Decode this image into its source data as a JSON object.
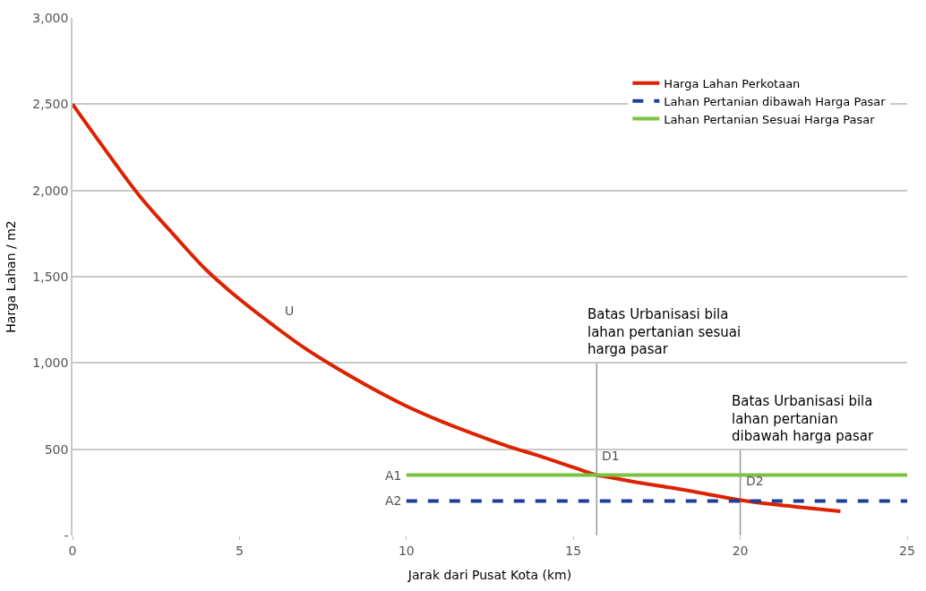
{
  "chart_data": {
    "type": "line",
    "xlabel": "Jarak dari Pusat Kota (km)",
    "ylabel": "Harga Lahan / m2",
    "series": [
      {
        "name": "Harga Lahan Perkotaan",
        "color": "#dd2200",
        "line_style": "solid",
        "x": [
          0,
          1,
          2,
          3,
          4,
          5,
          6,
          7,
          8,
          9,
          10,
          11,
          12,
          13,
          14,
          15,
          15.7,
          16,
          17,
          18,
          19,
          20,
          21,
          22,
          23
        ],
        "values": [
          2500,
          2230,
          1970,
          1750,
          1540,
          1370,
          1220,
          1080,
          960,
          850,
          750,
          665,
          590,
          520,
          460,
          395,
          350,
          340,
          305,
          275,
          240,
          205,
          180,
          160,
          140
        ]
      },
      {
        "name": "Lahan Pertanian dibawah Harga Pasar",
        "color": "#1f3e96",
        "line_style": "dashed",
        "x": [
          10,
          25
        ],
        "values": [
          200,
          200
        ]
      },
      {
        "name": "Lahan Pertanian Sesuai Harga Pasar",
        "color": "#7cc242",
        "line_style": "solid",
        "x": [
          10,
          25
        ],
        "values": [
          350,
          350
        ]
      }
    ],
    "xlim": [
      0,
      25
    ],
    "xticks": [
      0,
      5,
      10,
      15,
      20,
      25
    ],
    "ylim": [
      0,
      3000
    ],
    "yticks": [
      {
        "value": 0,
        "label": "-"
      },
      {
        "value": 500,
        "label": "500"
      },
      {
        "value": 1000,
        "label": "1,000"
      },
      {
        "value": 1500,
        "label": "1,500"
      },
      {
        "value": 2000,
        "label": "2,000"
      },
      {
        "value": 2500,
        "label": "2,500"
      },
      {
        "value": 3000,
        "label": "3,000"
      }
    ],
    "ref_lines": [
      {
        "axis": "x",
        "value": 15.7,
        "color": "#999999"
      },
      {
        "axis": "x",
        "value": 20,
        "color": "#999999"
      }
    ],
    "annotations": [
      {
        "text": "U",
        "x": 6.2,
        "y": 1190
      },
      {
        "text": "D1",
        "x": 15.7,
        "y": 350
      },
      {
        "text": "D2",
        "x": 20,
        "y": 200
      },
      {
        "text": "A1",
        "x": 10,
        "y": 350
      },
      {
        "text": "A2",
        "x": 10,
        "y": 200
      },
      {
        "text": "Batas Urbanisasi bila\nlahan pertanian sesuai\nharga pasar",
        "x": 15.7,
        "y": 1000
      },
      {
        "text": "Batas Urbanisasi bila\nlahan pertanian\ndibawah harga pasar",
        "x": 20,
        "y": 500
      }
    ],
    "grid": "y",
    "legend": "top right",
    "marker": "none"
  }
}
